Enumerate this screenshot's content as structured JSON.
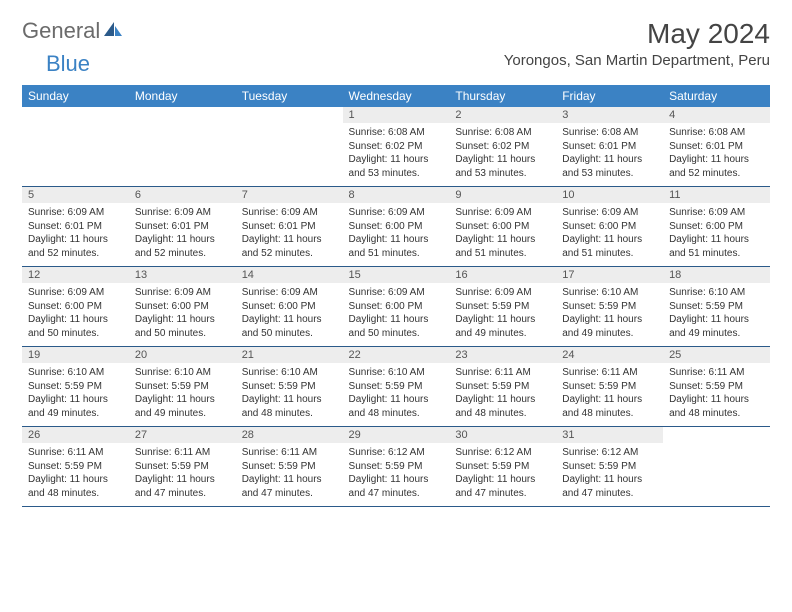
{
  "brand": {
    "part1": "General",
    "part2": "Blue"
  },
  "title": "May 2024",
  "location": "Yorongos, San Martin Department, Peru",
  "colors": {
    "header_bg": "#3b82c4",
    "daynum_bg": "#ededed",
    "rule": "#2b5a8a",
    "text": "#333333",
    "title": "#444444",
    "logo_gray": "#6b6b6b"
  },
  "day_headers": [
    "Sunday",
    "Monday",
    "Tuesday",
    "Wednesday",
    "Thursday",
    "Friday",
    "Saturday"
  ],
  "weeks": [
    [
      null,
      null,
      null,
      {
        "n": "1",
        "sr": "6:08 AM",
        "ss": "6:02 PM",
        "dl": "11 hours and 53 minutes."
      },
      {
        "n": "2",
        "sr": "6:08 AM",
        "ss": "6:02 PM",
        "dl": "11 hours and 53 minutes."
      },
      {
        "n": "3",
        "sr": "6:08 AM",
        "ss": "6:01 PM",
        "dl": "11 hours and 53 minutes."
      },
      {
        "n": "4",
        "sr": "6:08 AM",
        "ss": "6:01 PM",
        "dl": "11 hours and 52 minutes."
      }
    ],
    [
      {
        "n": "5",
        "sr": "6:09 AM",
        "ss": "6:01 PM",
        "dl": "11 hours and 52 minutes."
      },
      {
        "n": "6",
        "sr": "6:09 AM",
        "ss": "6:01 PM",
        "dl": "11 hours and 52 minutes."
      },
      {
        "n": "7",
        "sr": "6:09 AM",
        "ss": "6:01 PM",
        "dl": "11 hours and 52 minutes."
      },
      {
        "n": "8",
        "sr": "6:09 AM",
        "ss": "6:00 PM",
        "dl": "11 hours and 51 minutes."
      },
      {
        "n": "9",
        "sr": "6:09 AM",
        "ss": "6:00 PM",
        "dl": "11 hours and 51 minutes."
      },
      {
        "n": "10",
        "sr": "6:09 AM",
        "ss": "6:00 PM",
        "dl": "11 hours and 51 minutes."
      },
      {
        "n": "11",
        "sr": "6:09 AM",
        "ss": "6:00 PM",
        "dl": "11 hours and 51 minutes."
      }
    ],
    [
      {
        "n": "12",
        "sr": "6:09 AM",
        "ss": "6:00 PM",
        "dl": "11 hours and 50 minutes."
      },
      {
        "n": "13",
        "sr": "6:09 AM",
        "ss": "6:00 PM",
        "dl": "11 hours and 50 minutes."
      },
      {
        "n": "14",
        "sr": "6:09 AM",
        "ss": "6:00 PM",
        "dl": "11 hours and 50 minutes."
      },
      {
        "n": "15",
        "sr": "6:09 AM",
        "ss": "6:00 PM",
        "dl": "11 hours and 50 minutes."
      },
      {
        "n": "16",
        "sr": "6:09 AM",
        "ss": "5:59 PM",
        "dl": "11 hours and 49 minutes."
      },
      {
        "n": "17",
        "sr": "6:10 AM",
        "ss": "5:59 PM",
        "dl": "11 hours and 49 minutes."
      },
      {
        "n": "18",
        "sr": "6:10 AM",
        "ss": "5:59 PM",
        "dl": "11 hours and 49 minutes."
      }
    ],
    [
      {
        "n": "19",
        "sr": "6:10 AM",
        "ss": "5:59 PM",
        "dl": "11 hours and 49 minutes."
      },
      {
        "n": "20",
        "sr": "6:10 AM",
        "ss": "5:59 PM",
        "dl": "11 hours and 49 minutes."
      },
      {
        "n": "21",
        "sr": "6:10 AM",
        "ss": "5:59 PM",
        "dl": "11 hours and 48 minutes."
      },
      {
        "n": "22",
        "sr": "6:10 AM",
        "ss": "5:59 PM",
        "dl": "11 hours and 48 minutes."
      },
      {
        "n": "23",
        "sr": "6:11 AM",
        "ss": "5:59 PM",
        "dl": "11 hours and 48 minutes."
      },
      {
        "n": "24",
        "sr": "6:11 AM",
        "ss": "5:59 PM",
        "dl": "11 hours and 48 minutes."
      },
      {
        "n": "25",
        "sr": "6:11 AM",
        "ss": "5:59 PM",
        "dl": "11 hours and 48 minutes."
      }
    ],
    [
      {
        "n": "26",
        "sr": "6:11 AM",
        "ss": "5:59 PM",
        "dl": "11 hours and 48 minutes."
      },
      {
        "n": "27",
        "sr": "6:11 AM",
        "ss": "5:59 PM",
        "dl": "11 hours and 47 minutes."
      },
      {
        "n": "28",
        "sr": "6:11 AM",
        "ss": "5:59 PM",
        "dl": "11 hours and 47 minutes."
      },
      {
        "n": "29",
        "sr": "6:12 AM",
        "ss": "5:59 PM",
        "dl": "11 hours and 47 minutes."
      },
      {
        "n": "30",
        "sr": "6:12 AM",
        "ss": "5:59 PM",
        "dl": "11 hours and 47 minutes."
      },
      {
        "n": "31",
        "sr": "6:12 AM",
        "ss": "5:59 PM",
        "dl": "11 hours and 47 minutes."
      },
      null
    ]
  ],
  "labels": {
    "sunrise": "Sunrise:",
    "sunset": "Sunset:",
    "daylight": "Daylight:"
  }
}
